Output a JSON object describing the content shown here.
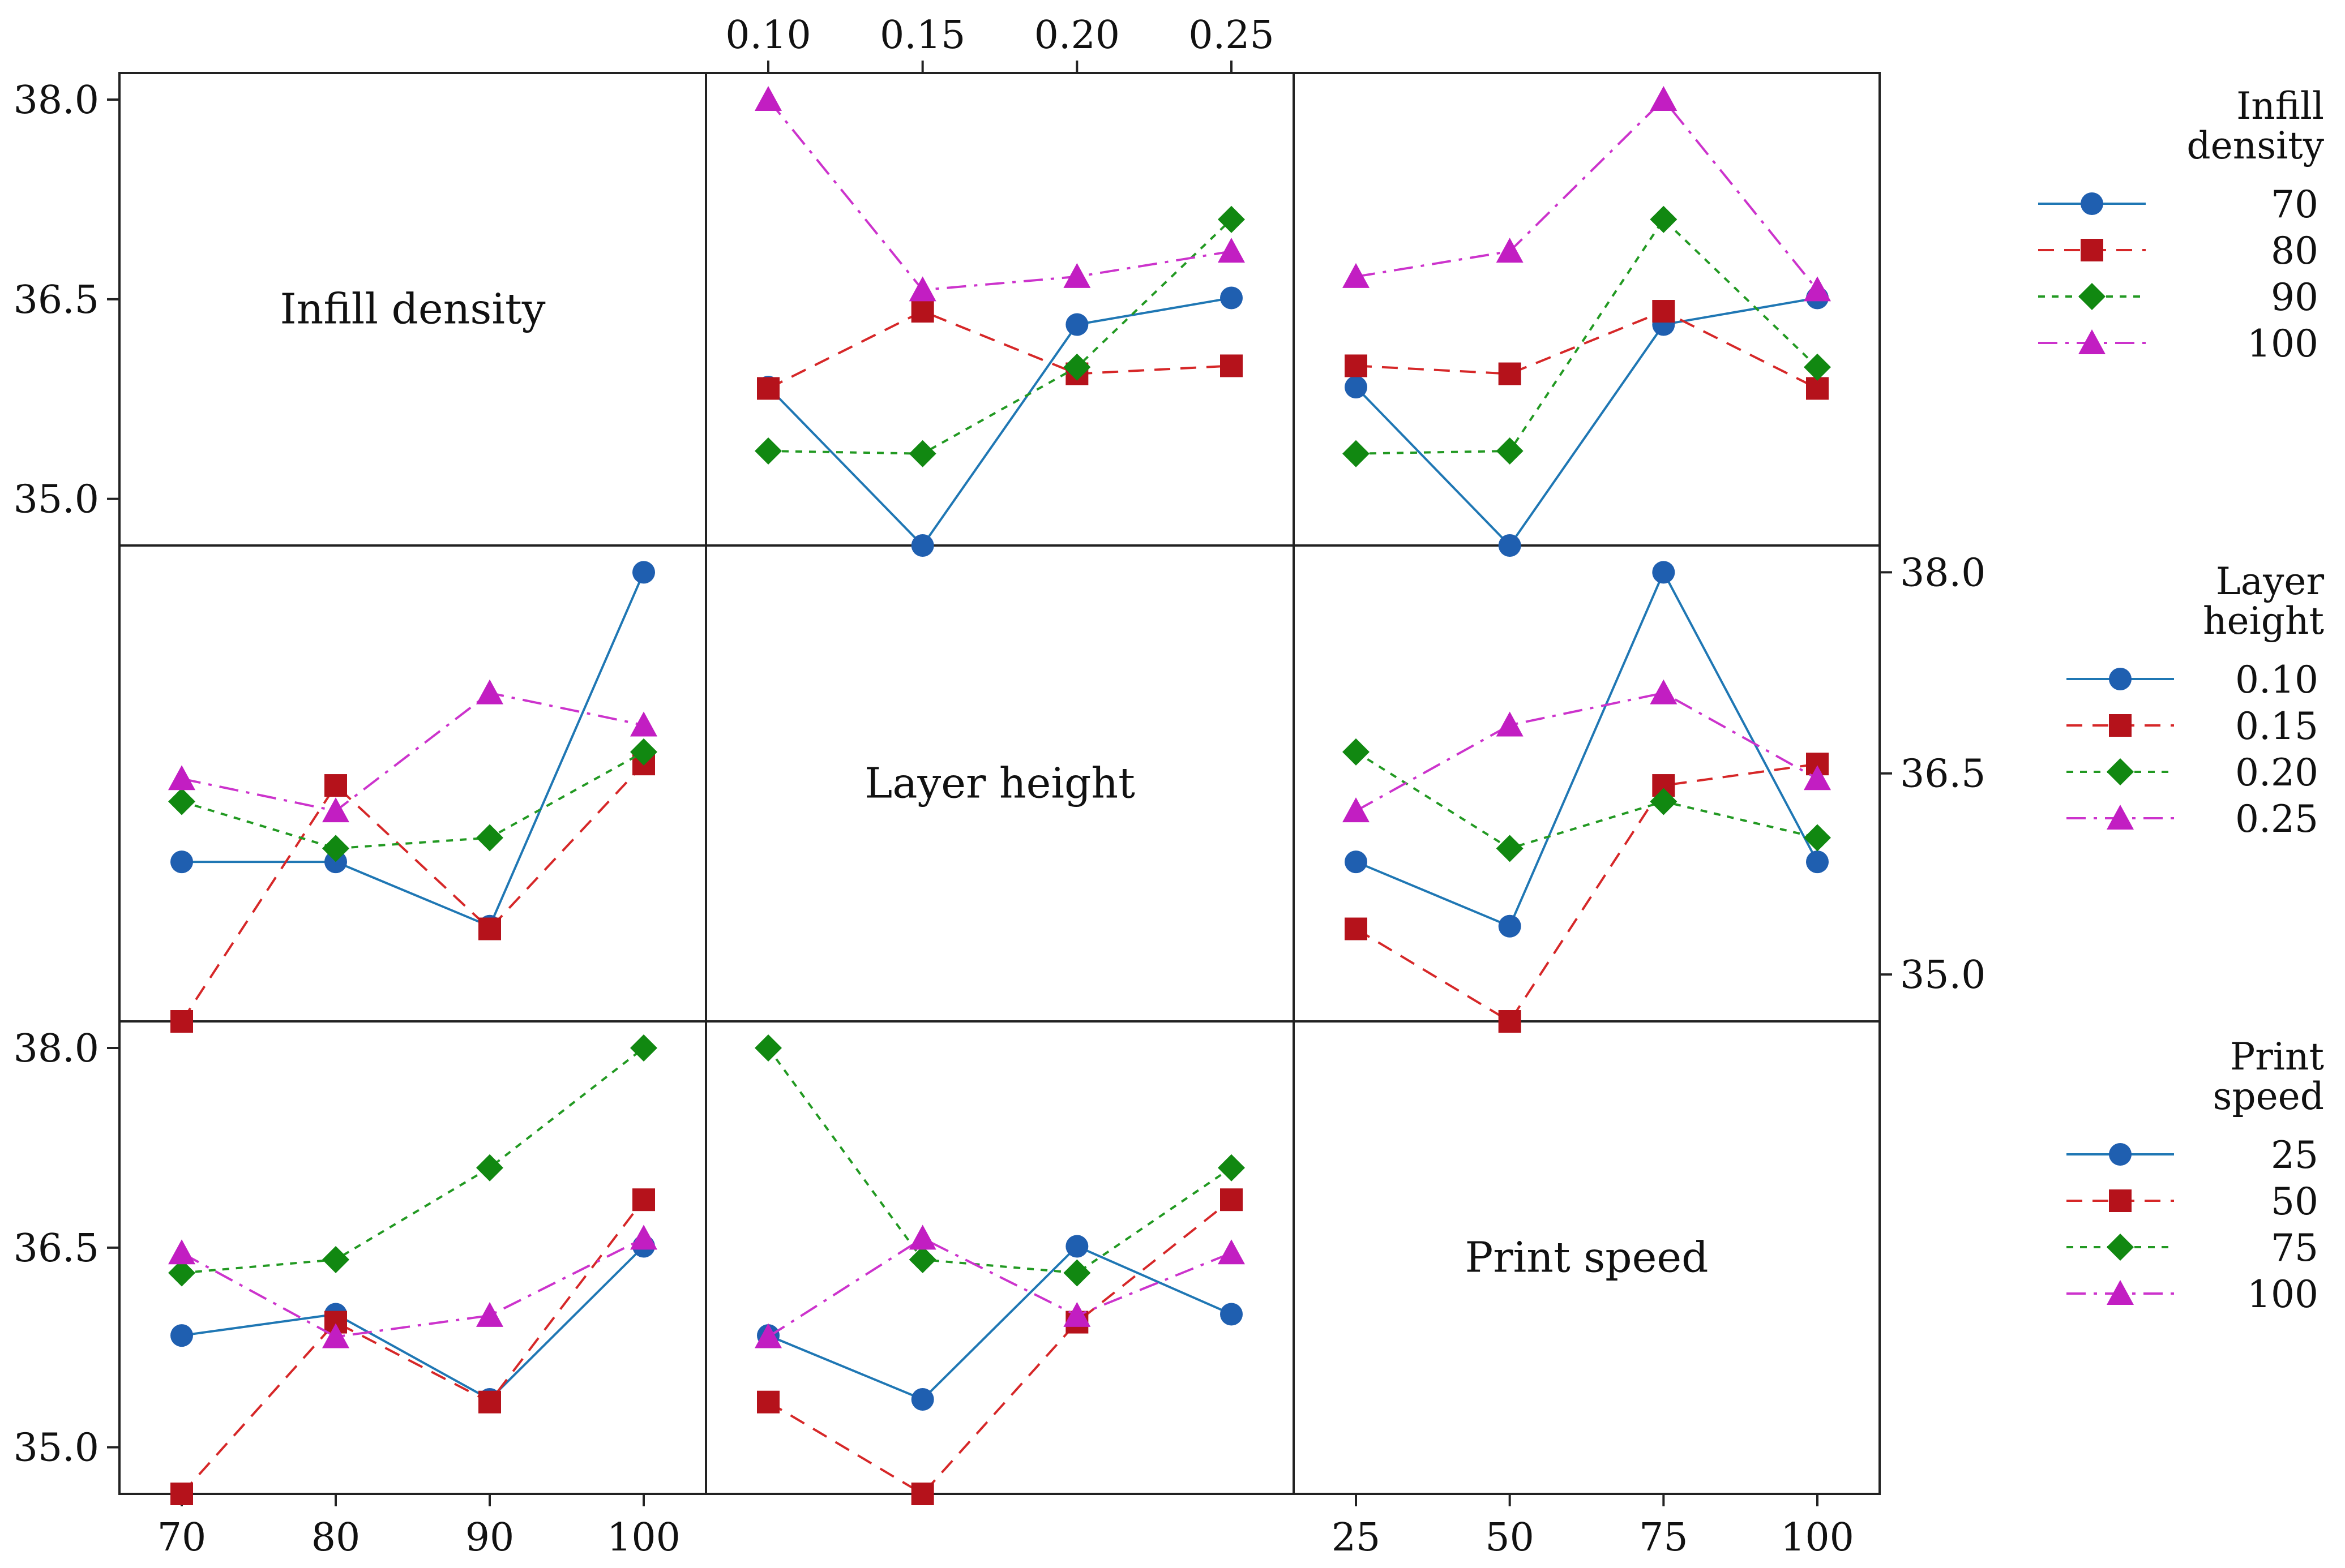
{
  "chart_data": {
    "type": "line",
    "title": "",
    "y_ticks": [
      "35.0",
      "36.5",
      "38.0"
    ],
    "ylim": [
      34.65,
      38.2
    ],
    "factors": [
      {
        "name": "Infill density",
        "legend_title": [
          "Infill",
          "density"
        ],
        "levels": [
          "70",
          "80",
          "90",
          "100"
        ],
        "axis_ticks": [
          "70",
          "80",
          "90",
          "100"
        ]
      },
      {
        "name": "Layer height",
        "legend_title": [
          "Layer",
          "height"
        ],
        "levels": [
          "0.10",
          "0.15",
          "0.20",
          "0.25"
        ],
        "axis_ticks": [
          "0.10",
          "0.15",
          "0.20",
          "0.25"
        ]
      },
      {
        "name": "Print speed",
        "legend_title": [
          "Print",
          "speed"
        ],
        "levels": [
          "25",
          "50",
          "75",
          "100"
        ],
        "axis_ticks": [
          "25",
          "50",
          "75",
          "100"
        ]
      }
    ],
    "series_styles": [
      {
        "color": "#1f5fb0",
        "line": "#1f77b4",
        "marker": "circle",
        "dash": ""
      },
      {
        "color": "#b5121b",
        "line": "#d62728",
        "marker": "square",
        "dash": "dashed"
      },
      {
        "color": "#118811",
        "line": "#229922",
        "marker": "diamond",
        "dash": "dotted"
      },
      {
        "color": "#c21ec2",
        "line": "#cc33cc",
        "marker": "triangle",
        "dash": "dashdot"
      }
    ],
    "panels": [
      {
        "row": 0,
        "col": 1,
        "x_factor": "Layer height",
        "group_factor": "Infill density",
        "series": [
          {
            "name": "70",
            "values": [
              35.84,
              34.65,
              36.31,
              36.51
            ]
          },
          {
            "name": "80",
            "values": [
              35.83,
              36.41,
              35.94,
              36.0
            ]
          },
          {
            "name": "90",
            "values": [
              35.36,
              35.34,
              35.99,
              37.1
            ]
          },
          {
            "name": "100",
            "values": [
              38.0,
              36.57,
              36.67,
              36.86
            ]
          }
        ]
      },
      {
        "row": 0,
        "col": 2,
        "x_factor": "Print speed",
        "group_factor": "Infill density",
        "series": [
          {
            "name": "70",
            "values": [
              35.84,
              34.65,
              36.31,
              36.51
            ]
          },
          {
            "name": "80",
            "values": [
              36.0,
              35.94,
              36.41,
              35.83
            ]
          },
          {
            "name": "90",
            "values": [
              35.34,
              35.36,
              37.1,
              35.99
            ]
          },
          {
            "name": "100",
            "values": [
              36.67,
              36.86,
              38.0,
              36.57
            ]
          }
        ]
      },
      {
        "row": 1,
        "col": 0,
        "x_factor": "Infill density",
        "group_factor": "Layer height",
        "series": [
          {
            "name": "0.10",
            "values": [
              35.84,
              35.84,
              35.36,
              38.0
            ]
          },
          {
            "name": "0.15",
            "values": [
              34.65,
              36.41,
              35.34,
              36.57
            ]
          },
          {
            "name": "0.20",
            "values": [
              36.29,
              35.94,
              36.02,
              36.66
            ]
          },
          {
            "name": "0.25",
            "values": [
              36.46,
              36.22,
              37.1,
              36.86
            ]
          }
        ]
      },
      {
        "row": 1,
        "col": 2,
        "x_factor": "Print speed",
        "group_factor": "Layer height",
        "series": [
          {
            "name": "0.10",
            "values": [
              35.84,
              35.36,
              38.0,
              35.84
            ]
          },
          {
            "name": "0.15",
            "values": [
              35.34,
              34.65,
              36.41,
              36.57
            ]
          },
          {
            "name": "0.20",
            "values": [
              36.66,
              35.94,
              36.29,
              36.02
            ]
          },
          {
            "name": "0.25",
            "values": [
              36.22,
              36.86,
              37.1,
              36.46
            ]
          }
        ]
      },
      {
        "row": 2,
        "col": 0,
        "x_factor": "Infill density",
        "group_factor": "Print speed",
        "series": [
          {
            "name": "25",
            "values": [
              35.84,
              36.0,
              35.36,
              36.51
            ]
          },
          {
            "name": "50",
            "values": [
              34.65,
              35.94,
              35.34,
              36.86
            ]
          },
          {
            "name": "75",
            "values": [
              36.31,
              36.41,
              37.1,
              38.0
            ]
          },
          {
            "name": "100",
            "values": [
              36.46,
              35.83,
              35.99,
              36.57
            ]
          }
        ]
      },
      {
        "row": 2,
        "col": 1,
        "x_factor": "Layer height",
        "group_factor": "Print speed",
        "series": [
          {
            "name": "25",
            "values": [
              35.84,
              35.36,
              36.51,
              36.0
            ]
          },
          {
            "name": "50",
            "values": [
              35.34,
              34.65,
              35.94,
              36.86
            ]
          },
          {
            "name": "75",
            "values": [
              38.0,
              36.41,
              36.31,
              37.1
            ]
          },
          {
            "name": "100",
            "values": [
              35.83,
              36.57,
              35.99,
              36.46
            ]
          }
        ]
      }
    ]
  }
}
